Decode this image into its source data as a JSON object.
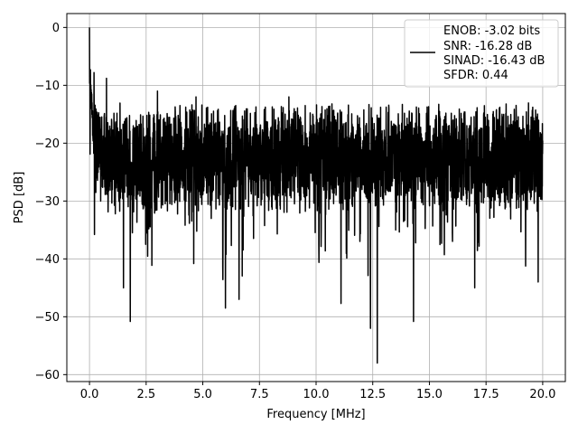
{
  "chart_data": {
    "type": "line",
    "title": "",
    "xlabel": "Frequency [MHz]",
    "ylabel": "PSD [dB]",
    "xlim": [
      -1.0,
      21.0
    ],
    "ylim": [
      -61.2,
      2.4
    ],
    "xticks": [
      0.0,
      2.5,
      5.0,
      7.5,
      10.0,
      12.5,
      15.0,
      17.5,
      20.0
    ],
    "xtick_labels": [
      "0.0",
      "2.5",
      "5.0",
      "7.5",
      "10.0",
      "12.5",
      "15.0",
      "17.5",
      "20.0"
    ],
    "yticks": [
      0,
      -10,
      -20,
      -30,
      -40,
      -50,
      -60
    ],
    "ytick_labels": [
      "0",
      "−10",
      "−20",
      "−30",
      "−40",
      "−50",
      "−60"
    ],
    "grid": true,
    "legend_position": "top-right",
    "legend_lines": [
      "ENOB: -3.02 bits",
      "SNR: -16.28 dB",
      "SINAD: -16.43 dB",
      "SFDR: 0.44"
    ],
    "series": [
      {
        "color": "#000000",
        "x_range": [
          0.0,
          20.0
        ],
        "peak_db": 0.0,
        "noise_floor_mean_db": -22.5,
        "upper_envelope_db": -14.0,
        "notable_dips": [
          {
            "x": 1.5,
            "y": -45.0
          },
          {
            "x": 1.8,
            "y": -50.8
          },
          {
            "x": 4.6,
            "y": -40.8
          },
          {
            "x": 6.0,
            "y": -48.5
          },
          {
            "x": 6.6,
            "y": -47.0
          },
          {
            "x": 11.1,
            "y": -47.7
          },
          {
            "x": 12.4,
            "y": -52.0
          },
          {
            "x": 12.7,
            "y": -58.0
          },
          {
            "x": 14.3,
            "y": -50.8
          },
          {
            "x": 17.0,
            "y": -45.0
          },
          {
            "x": 19.8,
            "y": -44.0
          }
        ],
        "high_peaks": [
          {
            "x": 0.0,
            "y": 0.0
          },
          {
            "x": 0.08,
            "y": -3.5
          },
          {
            "x": 0.2,
            "y": -7.8
          },
          {
            "x": 0.75,
            "y": -8.8
          },
          {
            "x": 1.5,
            "y": -10.2
          },
          {
            "x": 3.0,
            "y": -11.0
          },
          {
            "x": 4.7,
            "y": -12.0
          },
          {
            "x": 8.8,
            "y": -12.0
          }
        ]
      }
    ]
  }
}
